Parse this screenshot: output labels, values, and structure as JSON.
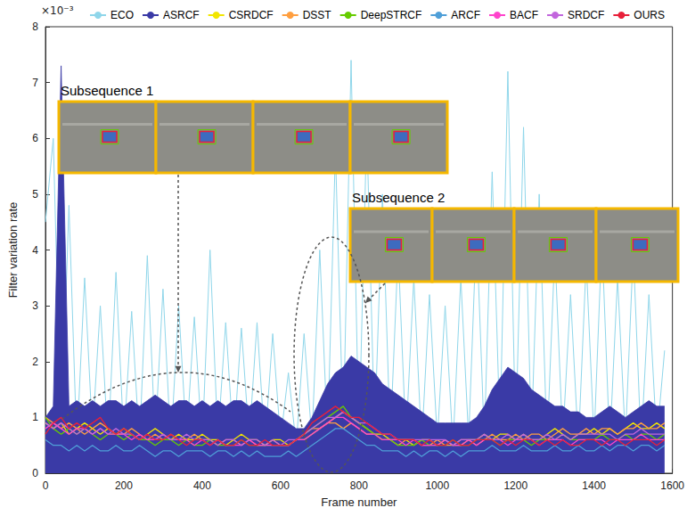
{
  "chart_data": {
    "type": "line",
    "x_label": "Frame number",
    "y_label": "Filter variation rate",
    "y_multiplier": "×10⁻³",
    "annotations": [
      "Subsequence 1",
      "Subsequence 2"
    ],
    "x": [
      0,
      20,
      40,
      60,
      80,
      100,
      120,
      140,
      160,
      180,
      200,
      220,
      240,
      260,
      280,
      300,
      320,
      340,
      360,
      380,
      400,
      420,
      440,
      460,
      480,
      500,
      520,
      540,
      560,
      580,
      600,
      620,
      640,
      660,
      680,
      700,
      720,
      740,
      760,
      780,
      800,
      820,
      840,
      860,
      880,
      900,
      920,
      940,
      960,
      980,
      1000,
      1020,
      1040,
      1060,
      1080,
      1100,
      1120,
      1140,
      1160,
      1180,
      1200,
      1220,
      1240,
      1260,
      1280,
      1300,
      1320,
      1340,
      1360,
      1380,
      1400,
      1420,
      1440,
      1460,
      1480,
      1500,
      1520,
      1540,
      1560,
      1580
    ],
    "xlim": [
      0,
      1600
    ],
    "xticks": [
      0,
      200,
      400,
      600,
      800,
      1000,
      1200,
      1400,
      1600
    ],
    "ylim": [
      0,
      8
    ],
    "yticks": [
      0,
      1,
      2,
      3,
      4,
      5,
      6,
      7,
      8
    ],
    "grid": false,
    "legend": "top",
    "series": [
      {
        "name": "ECO",
        "color": "#8fd6ea",
        "values": [
          4.5,
          6.0,
          0.6,
          4.8,
          0.5,
          3.5,
          0.7,
          3.0,
          0.5,
          3.6,
          0.6,
          2.9,
          0.5,
          3.9,
          0.6,
          3.3,
          0.5,
          3.0,
          0.6,
          2.8,
          0.5,
          4.0,
          0.6,
          2.7,
          0.5,
          2.6,
          0.6,
          2.7,
          0.5,
          2.5,
          0.6,
          1.8,
          0.5,
          2.5,
          0.6,
          4.0,
          0.6,
          5.8,
          0.7,
          7.4,
          0.6,
          6.2,
          0.7,
          5.0,
          0.6,
          4.0,
          0.6,
          3.5,
          0.5,
          3.2,
          0.6,
          3.0,
          0.5,
          3.5,
          0.6,
          4.4,
          0.6,
          5.4,
          0.7,
          7.2,
          0.6,
          6.2,
          0.6,
          5.0,
          0.5,
          4.0,
          0.6,
          3.2,
          0.5,
          3.8,
          0.6,
          4.2,
          0.5,
          3.5,
          0.6,
          4.0,
          0.5,
          3.2,
          0.6,
          2.2
        ]
      },
      {
        "name": "ASRCF",
        "color": "#3a3aa6",
        "type": "area",
        "values": [
          1.0,
          1.2,
          7.3,
          1.2,
          1.3,
          1.2,
          1.3,
          1.2,
          1.3,
          1.3,
          1.2,
          1.3,
          1.2,
          1.3,
          1.4,
          1.3,
          1.2,
          1.3,
          1.3,
          1.2,
          1.3,
          1.2,
          1.3,
          1.2,
          1.3,
          1.3,
          1.2,
          1.3,
          1.2,
          1.1,
          1.0,
          0.9,
          0.8,
          0.8,
          1.0,
          1.3,
          1.6,
          1.8,
          1.9,
          2.1,
          2.0,
          1.9,
          1.8,
          1.6,
          1.5,
          1.4,
          1.3,
          1.2,
          1.1,
          1.0,
          0.9,
          0.9,
          0.9,
          0.9,
          0.9,
          1.0,
          1.2,
          1.5,
          1.7,
          1.9,
          1.8,
          1.7,
          1.5,
          1.4,
          1.3,
          1.2,
          1.2,
          1.1,
          1.1,
          1.0,
          1.0,
          1.1,
          1.2,
          1.1,
          1.0,
          1.1,
          1.2,
          1.3,
          1.2,
          1.2
        ]
      },
      {
        "name": "CSRDCF",
        "color": "#f2e600",
        "values": [
          0.9,
          0.8,
          0.9,
          0.7,
          0.8,
          0.9,
          0.8,
          0.7,
          0.8,
          0.7,
          0.8,
          0.7,
          0.6,
          0.7,
          0.8,
          0.7,
          0.6,
          0.7,
          0.6,
          0.6,
          0.7,
          0.6,
          0.6,
          0.5,
          0.6,
          0.7,
          0.6,
          0.6,
          0.5,
          0.6,
          0.6,
          0.5,
          0.6,
          0.6,
          0.7,
          0.8,
          0.9,
          1.0,
          1.1,
          1.0,
          0.9,
          0.8,
          0.7,
          0.7,
          0.6,
          0.6,
          0.6,
          0.5,
          0.6,
          0.6,
          0.5,
          0.6,
          0.5,
          0.5,
          0.6,
          0.6,
          0.7,
          0.6,
          0.7,
          0.7,
          0.6,
          0.7,
          0.6,
          0.6,
          0.7,
          0.8,
          0.7,
          0.6,
          0.7,
          0.7,
          0.8,
          0.7,
          0.8,
          0.7,
          0.8,
          0.9,
          0.8,
          0.8,
          0.9,
          0.8
        ]
      },
      {
        "name": "DSST",
        "color": "#ff9f40",
        "values": [
          1.0,
          0.9,
          0.8,
          0.9,
          0.8,
          0.7,
          0.8,
          0.9,
          0.8,
          0.7,
          0.7,
          0.8,
          0.7,
          0.6,
          0.7,
          0.6,
          0.7,
          0.6,
          0.6,
          0.7,
          0.6,
          0.6,
          0.5,
          0.6,
          0.6,
          0.5,
          0.6,
          0.5,
          0.5,
          0.6,
          0.5,
          0.5,
          0.6,
          0.7,
          0.8,
          0.8,
          0.9,
          0.9,
          0.8,
          0.9,
          0.8,
          0.7,
          0.7,
          0.6,
          0.6,
          0.5,
          0.6,
          0.6,
          0.5,
          0.5,
          0.6,
          0.5,
          0.5,
          0.6,
          0.6,
          0.5,
          0.6,
          0.7,
          0.6,
          0.6,
          0.7,
          0.6,
          0.7,
          0.7,
          0.6,
          0.7,
          0.8,
          0.7,
          0.7,
          0.8,
          0.7,
          0.8,
          0.8,
          0.7,
          0.8,
          0.8,
          0.9,
          0.8,
          0.8,
          0.9
        ]
      },
      {
        "name": "DeepSTRCF",
        "color": "#66cc00",
        "values": [
          1.0,
          0.8,
          0.7,
          0.8,
          0.7,
          0.8,
          0.7,
          0.6,
          0.7,
          0.7,
          0.6,
          0.7,
          0.6,
          0.6,
          0.5,
          0.6,
          0.6,
          0.5,
          0.6,
          0.5,
          0.5,
          0.6,
          0.5,
          0.5,
          0.5,
          0.6,
          0.5,
          0.5,
          0.5,
          0.5,
          0.5,
          0.5,
          0.6,
          0.7,
          0.8,
          0.9,
          1.0,
          1.1,
          1.2,
          1.0,
          0.9,
          0.8,
          0.7,
          0.6,
          0.6,
          0.5,
          0.5,
          0.5,
          0.6,
          0.5,
          0.5,
          0.5,
          0.6,
          0.5,
          0.5,
          0.6,
          0.6,
          0.6,
          0.5,
          0.6,
          0.6,
          0.6,
          0.5,
          0.6,
          0.6,
          0.6,
          0.7,
          0.6,
          0.6,
          0.6,
          0.6,
          0.7,
          0.6,
          0.6,
          0.7,
          0.6,
          0.7,
          0.7,
          0.6,
          0.7
        ]
      },
      {
        "name": "ARCF",
        "color": "#4f9fd8",
        "values": [
          0.6,
          0.5,
          0.5,
          0.4,
          0.5,
          0.4,
          0.5,
          0.4,
          0.4,
          0.5,
          0.4,
          0.4,
          0.5,
          0.4,
          0.3,
          0.4,
          0.4,
          0.3,
          0.4,
          0.4,
          0.4,
          0.3,
          0.4,
          0.4,
          0.3,
          0.4,
          0.3,
          0.4,
          0.3,
          0.3,
          0.3,
          0.4,
          0.3,
          0.4,
          0.5,
          0.6,
          0.7,
          0.8,
          0.8,
          0.7,
          0.6,
          0.5,
          0.5,
          0.4,
          0.4,
          0.4,
          0.3,
          0.4,
          0.3,
          0.4,
          0.4,
          0.3,
          0.4,
          0.3,
          0.4,
          0.4,
          0.4,
          0.5,
          0.4,
          0.4,
          0.4,
          0.5,
          0.4,
          0.4,
          0.4,
          0.5,
          0.4,
          0.4,
          0.5,
          0.4,
          0.4,
          0.5,
          0.4,
          0.5,
          0.5,
          0.4,
          0.5,
          0.5,
          0.4,
          0.5
        ]
      },
      {
        "name": "BACF",
        "color": "#ff44cc",
        "values": [
          0.8,
          0.9,
          0.8,
          0.7,
          0.8,
          0.8,
          0.7,
          0.8,
          0.7,
          0.7,
          0.7,
          0.6,
          0.7,
          0.6,
          0.6,
          0.7,
          0.6,
          0.6,
          0.6,
          0.5,
          0.6,
          0.5,
          0.6,
          0.5,
          0.5,
          0.5,
          0.6,
          0.5,
          0.5,
          0.5,
          0.5,
          0.5,
          0.6,
          0.6,
          0.7,
          0.8,
          0.9,
          1.0,
          1.0,
          0.9,
          0.8,
          0.7,
          0.7,
          0.6,
          0.6,
          0.6,
          0.5,
          0.6,
          0.5,
          0.5,
          0.5,
          0.6,
          0.5,
          0.5,
          0.6,
          0.5,
          0.6,
          0.6,
          0.6,
          0.5,
          0.6,
          0.6,
          0.6,
          0.5,
          0.6,
          0.6,
          0.6,
          0.5,
          0.6,
          0.6,
          0.6,
          0.6,
          0.5,
          0.6,
          0.6,
          0.6,
          0.7,
          0.6,
          0.6,
          0.6
        ]
      },
      {
        "name": "SRDCF",
        "color": "#c266dd",
        "values": [
          0.9,
          0.8,
          0.9,
          0.8,
          0.7,
          0.8,
          0.7,
          0.8,
          0.7,
          0.8,
          0.7,
          0.7,
          0.6,
          0.7,
          0.6,
          0.7,
          0.6,
          0.6,
          0.7,
          0.6,
          0.6,
          0.6,
          0.5,
          0.6,
          0.6,
          0.5,
          0.6,
          0.6,
          0.5,
          0.6,
          0.5,
          0.6,
          0.6,
          0.7,
          0.8,
          0.9,
          1.0,
          1.0,
          1.1,
          1.0,
          0.9,
          0.9,
          0.8,
          0.7,
          0.7,
          0.6,
          0.6,
          0.6,
          0.6,
          0.6,
          0.6,
          0.6,
          0.5,
          0.6,
          0.6,
          0.6,
          0.7,
          0.6,
          0.6,
          0.7,
          0.6,
          0.7,
          0.6,
          0.6,
          0.7,
          0.6,
          0.7,
          0.6,
          0.7,
          0.7,
          0.7,
          0.7,
          0.7,
          0.6,
          0.7,
          0.7,
          0.8,
          0.7,
          0.7,
          0.7
        ]
      },
      {
        "name": "OURS",
        "color": "#e8203a",
        "values": [
          0.7,
          0.9,
          1.0,
          0.8,
          0.9,
          0.8,
          0.9,
          1.0,
          0.8,
          0.7,
          0.8,
          0.7,
          0.6,
          0.7,
          0.6,
          0.6,
          0.7,
          0.6,
          0.5,
          0.6,
          0.6,
          0.5,
          0.6,
          0.5,
          0.5,
          0.6,
          0.5,
          0.5,
          0.6,
          0.5,
          0.5,
          0.5,
          0.6,
          0.7,
          0.9,
          1.0,
          1.1,
          1.2,
          1.1,
          1.0,
          1.0,
          0.9,
          0.8,
          0.7,
          0.7,
          0.6,
          0.6,
          0.6,
          0.5,
          0.6,
          0.5,
          0.5,
          0.6,
          0.5,
          0.5,
          0.6,
          0.6,
          0.6,
          0.5,
          0.6,
          0.5,
          0.6,
          0.6,
          0.5,
          0.6,
          0.5,
          0.6,
          0.5,
          0.5,
          0.6,
          0.6,
          0.5,
          0.6,
          0.6,
          0.5,
          0.6,
          0.6,
          0.6,
          0.5,
          0.6
        ]
      }
    ]
  }
}
